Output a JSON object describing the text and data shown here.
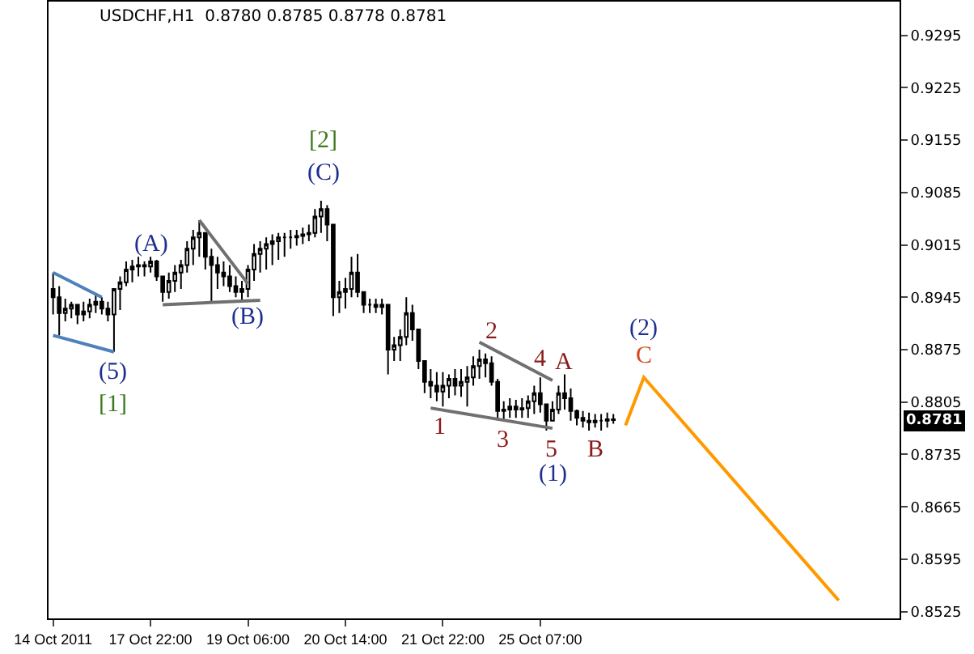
{
  "chart_data": {
    "type": "candlestick",
    "title": "USDCHF,H1  0.8780 0.8785 0.8778 0.8781",
    "color": "#000000",
    "categories": [
      "14 Oct 2011",
      null,
      null,
      null,
      null,
      null,
      null,
      null,
      null,
      null,
      null,
      null,
      null,
      null,
      null,
      null,
      "17 Oct 22:00",
      null,
      null,
      null,
      null,
      null,
      null,
      null,
      null,
      null,
      null,
      null,
      null,
      null,
      null,
      null,
      "19 Oct 06:00",
      null,
      null,
      null,
      null,
      null,
      null,
      null,
      null,
      null,
      null,
      null,
      null,
      null,
      null,
      null,
      "20 Oct 14:00",
      null,
      null,
      null,
      null,
      null,
      null,
      null,
      null,
      null,
      null,
      null,
      null,
      null,
      null,
      null,
      "21 Oct 22:00",
      null,
      null,
      null,
      null,
      null,
      null,
      null,
      null,
      null,
      null,
      null,
      null,
      null,
      null,
      null,
      "25 Oct 07:00",
      null,
      null,
      null,
      null,
      null,
      null,
      null,
      null,
      null,
      null,
      null,
      null,
      null,
      null,
      null,
      null,
      null,
      null,
      null,
      null,
      null,
      null,
      null,
      null,
      null,
      null,
      null,
      null,
      null,
      null,
      null,
      null,
      null,
      null,
      null,
      null,
      null,
      null,
      null,
      null,
      null,
      null,
      null,
      null,
      null,
      null,
      null,
      null,
      null,
      null,
      null,
      null,
      null,
      null,
      null,
      null,
      null,
      null
    ],
    "ohlc": [
      [
        0.8956,
        0.8978,
        0.8922,
        0.8945
      ],
      [
        0.8945,
        0.896,
        0.8894,
        0.8924
      ],
      [
        0.8924,
        0.8943,
        0.8913,
        0.893
      ],
      [
        0.893,
        0.8939,
        0.8917,
        0.8935
      ],
      [
        0.8935,
        0.8935,
        0.8909,
        0.8922
      ],
      [
        0.8922,
        0.8939,
        0.8913,
        0.8926
      ],
      [
        0.8926,
        0.8943,
        0.8917,
        0.8935
      ],
      [
        0.8935,
        0.895,
        0.8924,
        0.8939
      ],
      [
        0.8939,
        0.8945,
        0.8922,
        0.893
      ],
      [
        0.893,
        0.8939,
        0.8913,
        0.8922
      ],
      [
        0.8922,
        0.8956,
        0.8872,
        0.8956
      ],
      [
        0.8956,
        0.8973,
        0.8928,
        0.8965
      ],
      [
        0.8965,
        0.8993,
        0.896,
        0.8982
      ],
      [
        0.8982,
        0.8995,
        0.8965,
        0.8986
      ],
      [
        0.8986,
        0.8999,
        0.8973,
        0.8988
      ],
      [
        0.8988,
        0.8993,
        0.8973,
        0.8986
      ],
      [
        0.8986,
        0.8999,
        0.8978,
        0.8993
      ],
      [
        0.8993,
        0.8995,
        0.8967,
        0.8973
      ],
      [
        0.8973,
        0.8973,
        0.8939,
        0.8952
      ],
      [
        0.8952,
        0.8978,
        0.8943,
        0.8967
      ],
      [
        0.8967,
        0.8988,
        0.8952,
        0.8978
      ],
      [
        0.8978,
        0.8995,
        0.8956,
        0.8988
      ],
      [
        0.8988,
        0.902,
        0.8978,
        0.901
      ],
      [
        0.901,
        0.9035,
        0.8988,
        0.9025
      ],
      [
        0.9025,
        0.9048,
        0.8999,
        0.9031
      ],
      [
        0.9031,
        0.9031,
        0.8982,
        0.8999
      ],
      [
        0.8999,
        0.901,
        0.8939,
        0.8988
      ],
      [
        0.8988,
        0.8999,
        0.8956,
        0.8978
      ],
      [
        0.8978,
        0.8993,
        0.896,
        0.8973
      ],
      [
        0.8973,
        0.8988,
        0.8952,
        0.896
      ],
      [
        0.896,
        0.8973,
        0.8945,
        0.8952
      ],
      [
        0.8952,
        0.8967,
        0.8941,
        0.8956
      ],
      [
        0.8956,
        0.8988,
        0.8945,
        0.8982
      ],
      [
        0.8982,
        0.9016,
        0.8967,
        0.9003
      ],
      [
        0.9003,
        0.902,
        0.8978,
        0.901
      ],
      [
        0.901,
        0.9025,
        0.8982,
        0.9016
      ],
      [
        0.9016,
        0.9029,
        0.8988,
        0.902
      ],
      [
        0.902,
        0.9031,
        0.8995,
        0.9025
      ],
      [
        0.9025,
        0.9031,
        0.8999,
        0.9025
      ],
      [
        0.9025,
        0.9035,
        0.901,
        0.9025
      ],
      [
        0.9025,
        0.9035,
        0.9014,
        0.9027
      ],
      [
        0.9027,
        0.9038,
        0.9016,
        0.9029
      ],
      [
        0.9029,
        0.9042,
        0.902,
        0.9031
      ],
      [
        0.9031,
        0.9063,
        0.9025,
        0.9053
      ],
      [
        0.9053,
        0.9074,
        0.9031,
        0.9063
      ],
      [
        0.9063,
        0.9068,
        0.902,
        0.9042
      ],
      [
        0.9042,
        0.9042,
        0.892,
        0.8945
      ],
      [
        0.8945,
        0.8967,
        0.8924,
        0.8952
      ],
      [
        0.8952,
        0.8971,
        0.893,
        0.8956
      ],
      [
        0.8956,
        0.8999,
        0.8945,
        0.8978
      ],
      [
        0.8978,
        0.9003,
        0.8945,
        0.8952
      ],
      [
        0.8952,
        0.8952,
        0.8924,
        0.8935
      ],
      [
        0.8935,
        0.8943,
        0.8924,
        0.8935
      ],
      [
        0.8935,
        0.8943,
        0.8924,
        0.8932
      ],
      [
        0.8932,
        0.8943,
        0.8922,
        0.8935
      ],
      [
        0.8935,
        0.8935,
        0.8842,
        0.8875
      ],
      [
        0.8875,
        0.8892,
        0.886,
        0.8881
      ],
      [
        0.8881,
        0.8902,
        0.886,
        0.8892
      ],
      [
        0.8892,
        0.8945,
        0.8881,
        0.8924
      ],
      [
        0.8924,
        0.8935,
        0.8887,
        0.8902
      ],
      [
        0.8902,
        0.8902,
        0.8849,
        0.886
      ],
      [
        0.886,
        0.886,
        0.8817,
        0.8832
      ],
      [
        0.8832,
        0.8849,
        0.881,
        0.8827
      ],
      [
        0.8827,
        0.8845,
        0.8806,
        0.8819
      ],
      [
        0.8819,
        0.8845,
        0.8799,
        0.8827
      ],
      [
        0.8827,
        0.8842,
        0.881,
        0.8836
      ],
      [
        0.8836,
        0.8849,
        0.8814,
        0.8827
      ],
      [
        0.8827,
        0.8849,
        0.8812,
        0.8832
      ],
      [
        0.8832,
        0.8853,
        0.8799,
        0.8838
      ],
      [
        0.8838,
        0.8866,
        0.8827,
        0.8853
      ],
      [
        0.8853,
        0.8875,
        0.8836,
        0.8862
      ],
      [
        0.8862,
        0.887,
        0.8838,
        0.8857
      ],
      [
        0.8857,
        0.8866,
        0.8827,
        0.8832
      ],
      [
        0.8832,
        0.8836,
        0.8784,
        0.8793
      ],
      [
        0.8793,
        0.8806,
        0.878,
        0.8795
      ],
      [
        0.8795,
        0.881,
        0.8784,
        0.8799
      ],
      [
        0.8799,
        0.8808,
        0.8784,
        0.8795
      ],
      [
        0.8795,
        0.881,
        0.8784,
        0.8797
      ],
      [
        0.8797,
        0.8814,
        0.8784,
        0.8806
      ],
      [
        0.8806,
        0.8827,
        0.8789,
        0.8817
      ],
      [
        0.8817,
        0.8838,
        0.8791,
        0.8802
      ],
      [
        0.8802,
        0.8802,
        0.8767,
        0.878
      ],
      [
        0.878,
        0.8806,
        0.878,
        0.8795
      ],
      [
        0.8795,
        0.8827,
        0.8789,
        0.8817
      ],
      [
        0.8817,
        0.8842,
        0.8795,
        0.881
      ],
      [
        0.881,
        0.8823,
        0.878,
        0.8793
      ],
      [
        0.8793,
        0.8795,
        0.8774,
        0.8784
      ],
      [
        0.8784,
        0.8793,
        0.8771,
        0.878
      ],
      [
        0.878,
        0.8791,
        0.8767,
        0.8778
      ],
      [
        0.8778,
        0.8789,
        0.8771,
        0.878
      ],
      [
        0.878,
        0.8789,
        0.8767,
        0.878
      ],
      [
        0.878,
        0.8791,
        0.8771,
        0.8782
      ],
      [
        0.8782,
        0.8789,
        0.8776,
        0.8781
      ],
      null,
      null,
      null,
      null,
      null,
      null,
      null,
      null,
      null,
      null,
      null,
      null,
      null,
      null,
      null,
      null,
      null,
      null,
      null,
      null,
      null,
      null,
      null,
      null,
      null,
      null,
      null,
      null,
      null,
      null,
      null,
      null,
      null,
      null,
      null,
      null,
      null,
      null,
      null,
      null,
      null,
      null,
      null,
      null,
      null,
      null
    ],
    "series": [
      {
        "type": "line",
        "color": "#4f81bd",
        "values": [
          0.8978,
          null,
          null,
          null,
          null,
          null,
          null,
          null,
          0.8945,
          null,
          null,
          null,
          null,
          null,
          null,
          null,
          null,
          null,
          null,
          null,
          null,
          null,
          null,
          null,
          null,
          null,
          null,
          null,
          null,
          null,
          null,
          null,
          null,
          null,
          null,
          null,
          null,
          null,
          null,
          null,
          null,
          null,
          null,
          null,
          null,
          null,
          null,
          null,
          null,
          null,
          null,
          null,
          null,
          null,
          null,
          null,
          null,
          null,
          null,
          null,
          null,
          null,
          null,
          null,
          null,
          null,
          null,
          null,
          null,
          null,
          null,
          null,
          null,
          null,
          null,
          null,
          null,
          null,
          null,
          null,
          null,
          null,
          null,
          null,
          null,
          null,
          null,
          null,
          null,
          null,
          null,
          null,
          null,
          null,
          null,
          null,
          null,
          null,
          null,
          null,
          null,
          null,
          null,
          null,
          null,
          null,
          null,
          null,
          null,
          null,
          null,
          null,
          null,
          null,
          null,
          null,
          null,
          null,
          null,
          null,
          null,
          null,
          null,
          null,
          null,
          null,
          null,
          null,
          null,
          null,
          null,
          null,
          null,
          null,
          null,
          null,
          null,
          null,
          null
        ]
      },
      {
        "type": "line",
        "color": "#4f81bd",
        "values": [
          0.8894,
          null,
          null,
          null,
          null,
          null,
          null,
          null,
          null,
          null,
          0.8872,
          null,
          null,
          null,
          null,
          null,
          null,
          null,
          null,
          null,
          null,
          null,
          null,
          null,
          null,
          null,
          null,
          null,
          null,
          null,
          null,
          null,
          null,
          null,
          null,
          null,
          null,
          null,
          null,
          null,
          null,
          null,
          null,
          null,
          null,
          null,
          null,
          null,
          null,
          null,
          null,
          null,
          null,
          null,
          null,
          null,
          null,
          null,
          null,
          null,
          null,
          null,
          null,
          null,
          null,
          null,
          null,
          null,
          null,
          null,
          null,
          null,
          null,
          null,
          null,
          null,
          null,
          null,
          null,
          null,
          null,
          null,
          null,
          null,
          null,
          null,
          null,
          null,
          null,
          null,
          null,
          null,
          null,
          null,
          null,
          null,
          null,
          null,
          null,
          null,
          null,
          null,
          null,
          null,
          null,
          null,
          null,
          null,
          null,
          null,
          null,
          null,
          null,
          null,
          null,
          null,
          null,
          null,
          null,
          null,
          null,
          null,
          null,
          null,
          null,
          null,
          null,
          null,
          null,
          null,
          null,
          null,
          null,
          null,
          null,
          null,
          null,
          null,
          null
        ]
      },
      {
        "type": "line",
        "color": "#707070",
        "values": [
          null,
          null,
          null,
          null,
          null,
          null,
          null,
          null,
          null,
          null,
          null,
          null,
          null,
          null,
          null,
          null,
          null,
          null,
          0.8935,
          null,
          null,
          null,
          null,
          null,
          null,
          null,
          null,
          null,
          null,
          null,
          null,
          null,
          null,
          null,
          0.8941,
          null,
          null,
          null,
          null,
          null,
          null,
          null,
          null,
          null,
          null,
          null,
          null,
          null,
          null,
          null,
          null,
          null,
          null,
          null,
          null,
          null,
          null,
          null,
          null,
          null,
          null,
          null,
          null,
          null,
          null,
          null,
          null,
          null,
          null,
          null,
          null,
          null,
          null,
          null,
          null,
          null,
          null,
          null,
          null,
          null,
          null,
          null,
          null,
          null,
          null,
          null,
          null,
          null,
          null,
          null,
          null,
          null,
          null,
          null,
          null,
          null,
          null,
          null,
          null,
          null,
          null,
          null,
          null,
          null,
          null,
          null,
          null,
          null,
          null,
          null,
          null,
          null,
          null,
          null,
          null,
          null,
          null,
          null,
          null,
          null,
          null,
          null,
          null,
          null,
          null,
          null,
          null,
          null,
          null,
          null,
          null,
          null,
          null,
          null,
          null,
          null,
          null,
          null,
          null
        ]
      },
      {
        "type": "line",
        "color": "#707070",
        "values": [
          null,
          null,
          null,
          null,
          null,
          null,
          null,
          null,
          null,
          null,
          null,
          null,
          null,
          null,
          null,
          null,
          null,
          null,
          null,
          null,
          null,
          null,
          null,
          null,
          0.9048,
          null,
          null,
          null,
          null,
          null,
          null,
          null,
          0.8963,
          null,
          null,
          null,
          null,
          null,
          null,
          null,
          null,
          null,
          null,
          null,
          null,
          null,
          null,
          null,
          null,
          null,
          null,
          null,
          null,
          null,
          null,
          null,
          null,
          null,
          null,
          null,
          null,
          null,
          null,
          null,
          null,
          null,
          null,
          null,
          null,
          null,
          null,
          null,
          null,
          null,
          null,
          null,
          null,
          null,
          null,
          null,
          null,
          null,
          null,
          null,
          null,
          null,
          null,
          null,
          null,
          null,
          null,
          null,
          null,
          null,
          null,
          null,
          null,
          null,
          null,
          null,
          null,
          null,
          null,
          null,
          null,
          null,
          null,
          null,
          null,
          null,
          null,
          null,
          null,
          null,
          null,
          null,
          null,
          null,
          null,
          null,
          null,
          null,
          null,
          null,
          null,
          null,
          null,
          null,
          null,
          null,
          null,
          null,
          null,
          null,
          null,
          null,
          null,
          null,
          null
        ]
      },
      {
        "type": "line",
        "color": "#707070",
        "values": [
          null,
          null,
          null,
          null,
          null,
          null,
          null,
          null,
          null,
          null,
          null,
          null,
          null,
          null,
          null,
          null,
          null,
          null,
          null,
          null,
          null,
          null,
          null,
          null,
          null,
          null,
          null,
          null,
          null,
          null,
          null,
          null,
          null,
          null,
          null,
          null,
          null,
          null,
          null,
          null,
          null,
          null,
          null,
          null,
          null,
          null,
          null,
          null,
          null,
          null,
          null,
          null,
          null,
          null,
          null,
          null,
          null,
          null,
          null,
          null,
          null,
          null,
          null,
          null,
          null,
          null,
          null,
          null,
          null,
          null,
          0.8885,
          null,
          null,
          null,
          null,
          null,
          null,
          null,
          null,
          null,
          null,
          null,
          0.8834,
          null,
          null,
          null,
          null,
          null,
          null,
          null,
          null,
          null,
          null,
          null,
          null,
          null,
          null,
          null,
          null,
          null,
          null,
          null,
          null,
          null,
          null,
          null,
          null,
          null,
          null,
          null,
          null,
          null,
          null,
          null,
          null,
          null,
          null,
          null,
          null,
          null,
          null,
          null,
          null,
          null,
          null,
          null,
          null,
          null,
          null,
          null,
          null,
          null,
          null,
          null,
          null,
          null,
          null,
          null,
          null
        ]
      },
      {
        "type": "line",
        "color": "#707070",
        "values": [
          null,
          null,
          null,
          null,
          null,
          null,
          null,
          null,
          null,
          null,
          null,
          null,
          null,
          null,
          null,
          null,
          null,
          null,
          null,
          null,
          null,
          null,
          null,
          null,
          null,
          null,
          null,
          null,
          null,
          null,
          null,
          null,
          null,
          null,
          null,
          null,
          null,
          null,
          null,
          null,
          null,
          null,
          null,
          null,
          null,
          null,
          null,
          null,
          null,
          null,
          null,
          null,
          null,
          null,
          null,
          null,
          null,
          null,
          null,
          null,
          null,
          null,
          0.8797,
          null,
          null,
          null,
          null,
          null,
          null,
          null,
          null,
          null,
          null,
          null,
          null,
          null,
          null,
          null,
          null,
          null,
          null,
          null,
          0.877,
          null,
          null,
          null,
          null,
          null,
          null,
          null,
          null,
          null,
          null,
          null,
          null,
          null,
          null,
          null,
          null,
          null,
          null,
          null,
          null,
          null,
          null,
          null,
          null,
          null,
          null,
          null,
          null,
          null,
          null,
          null,
          null,
          null,
          null,
          null,
          null,
          null,
          null,
          null,
          null,
          null,
          null,
          null,
          null,
          null,
          null,
          null,
          null,
          null,
          null,
          null,
          null,
          null,
          null,
          null,
          null
        ]
      },
      {
        "type": "line",
        "color": "#ff9900",
        "values": [
          null,
          null,
          null,
          null,
          null,
          null,
          null,
          null,
          null,
          null,
          null,
          null,
          null,
          null,
          null,
          null,
          null,
          null,
          null,
          null,
          null,
          null,
          null,
          null,
          null,
          null,
          null,
          null,
          null,
          null,
          null,
          null,
          null,
          null,
          null,
          null,
          null,
          null,
          null,
          null,
          null,
          null,
          null,
          null,
          null,
          null,
          null,
          null,
          null,
          null,
          null,
          null,
          null,
          null,
          null,
          null,
          null,
          null,
          null,
          null,
          null,
          null,
          null,
          null,
          null,
          null,
          null,
          null,
          null,
          null,
          null,
          null,
          null,
          null,
          null,
          null,
          null,
          null,
          null,
          null,
          null,
          null,
          null,
          null,
          null,
          null,
          null,
          null,
          null,
          null,
          null,
          null,
          null,
          null,
          0.8774,
          null,
          null,
          0.8838,
          null,
          null,
          null,
          null,
          null,
          null,
          null,
          null,
          null,
          null,
          null,
          null,
          null,
          null,
          null,
          null,
          null,
          null,
          null,
          null,
          null,
          null,
          null,
          null,
          null,
          null,
          null,
          null,
          null,
          null,
          null,
          0.854,
          null,
          null,
          null,
          null,
          null,
          null,
          null,
          null,
          null
        ]
      }
    ],
    "ylim": [
      0.8516,
      0.934
    ],
    "yticks": [
      0.8525,
      0.8595,
      0.8665,
      0.8735,
      0.8805,
      0.8875,
      0.8945,
      0.9015,
      0.9085,
      0.9155,
      0.9225,
      0.9295
    ],
    "annotations": [
      "(5)",
      "[1]",
      "(A)",
      "(B)",
      "[2]",
      "(C)",
      "1",
      "2",
      "3",
      "4",
      "A",
      "5",
      "(1)",
      "B",
      "(2)",
      "C",
      "0.8781"
    ]
  }
}
